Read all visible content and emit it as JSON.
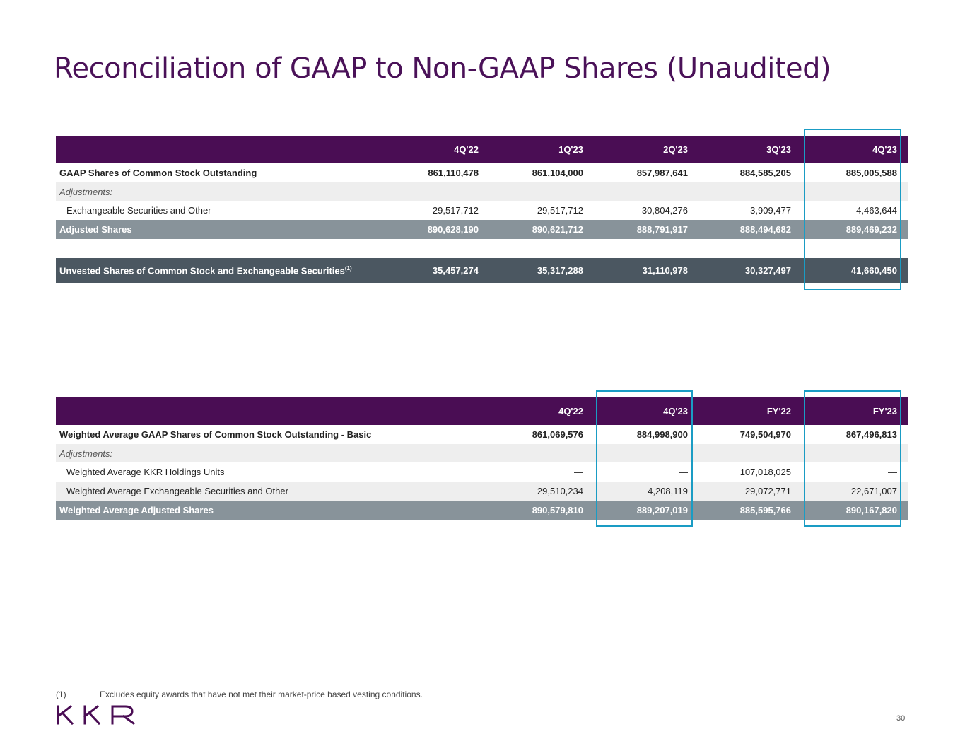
{
  "title": "Reconciliation of GAAP to Non-GAAP Shares (Unaudited)",
  "table1": {
    "columns": [
      "4Q'22",
      "1Q'23",
      "2Q'23",
      "3Q'23",
      "4Q'23"
    ],
    "rows": [
      {
        "label": "GAAP Shares of Common Stock Outstanding",
        "values": [
          "861,110,478",
          "861,104,000",
          "857,987,641",
          "884,585,205",
          "885,005,588"
        ]
      },
      {
        "label": "Adjustments:"
      },
      {
        "label": "Exchangeable Securities and Other",
        "values": [
          "29,517,712",
          "29,517,712",
          "30,804,276",
          "3,909,477",
          "4,463,644"
        ]
      },
      {
        "label": "Adjusted Shares",
        "values": [
          "890,628,190",
          "890,621,712",
          "888,791,917",
          "888,494,682",
          "889,469,232"
        ]
      },
      {
        "label": "Unvested Shares of Common Stock and Exchangeable Securities",
        "sup": "(1)",
        "values": [
          "35,457,274",
          "35,317,288",
          "31,110,978",
          "30,327,497",
          "41,660,450"
        ]
      }
    ]
  },
  "table2": {
    "columns": [
      "4Q'22",
      "4Q'23",
      "FY'22",
      "FY'23"
    ],
    "rows": [
      {
        "label": "Weighted Average GAAP Shares of Common Stock Outstanding - Basic",
        "values": [
          "861,069,576",
          "884,998,900",
          "749,504,970",
          "867,496,813"
        ]
      },
      {
        "label": "Adjustments:"
      },
      {
        "label": "Weighted Average KKR Holdings Units",
        "values": [
          "—",
          "—",
          "107,018,025",
          "—"
        ]
      },
      {
        "label": "Weighted Average Exchangeable Securities and Other",
        "values": [
          "29,510,234",
          "4,208,119",
          "29,072,771",
          "22,671,007"
        ]
      },
      {
        "label": "Weighted Average Adjusted Shares",
        "values": [
          "890,579,810",
          "889,207,019",
          "885,595,766",
          "890,167,820"
        ]
      }
    ]
  },
  "footnote": {
    "number": "(1)",
    "text": "Excludes equity awards that have not met their market-price based vesting conditions."
  },
  "logo": {
    "text": "KKR",
    "color": "#4a0d54"
  },
  "page_number": "30",
  "colors": {
    "title": "#4a1158",
    "header": "#4a0d54",
    "total_row": "#88939a",
    "dark_row": "#4b5761",
    "highlight": "#1a9cc4"
  }
}
